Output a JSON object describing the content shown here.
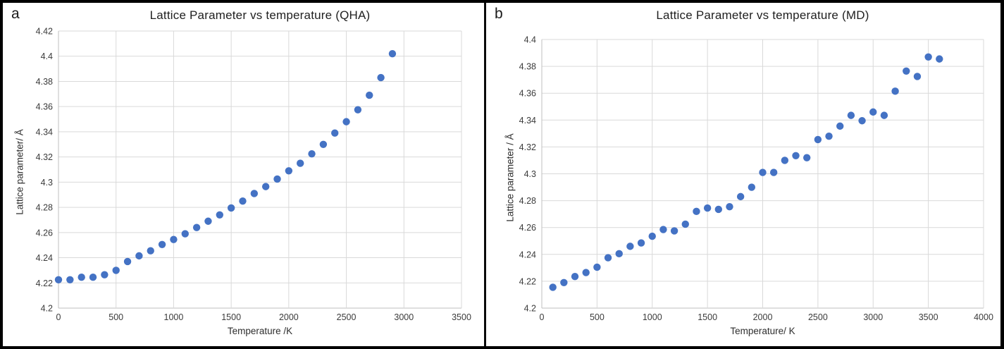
{
  "figure": {
    "panels": [
      {
        "letter": "a"
      },
      {
        "letter": "b"
      }
    ]
  },
  "chart_data": [
    {
      "type": "scatter",
      "title": "Lattice Parameter vs temperature (QHA)",
      "xlabel": "Temperature /K",
      "ylabel": "Lattice parameter/ Å",
      "xlim": [
        0,
        3500
      ],
      "ylim": [
        4.2,
        4.42
      ],
      "xticks": [
        0,
        500,
        1000,
        1500,
        2000,
        2500,
        3000,
        3500
      ],
      "yticks": [
        4.2,
        4.22,
        4.24,
        4.26,
        4.28,
        4.3,
        4.32,
        4.34,
        4.36,
        4.38,
        4.4,
        4.42
      ],
      "grid": true,
      "legend": "none",
      "point_color": "#4472C4",
      "grid_color": "#d9d9d9",
      "axis_color": "#bfbfbf",
      "tick_color": "#3b3b3b",
      "x": [
        0,
        100,
        200,
        300,
        400,
        500,
        600,
        700,
        800,
        900,
        1000,
        1100,
        1200,
        1300,
        1400,
        1500,
        1600,
        1700,
        1800,
        1900,
        2000,
        2100,
        2200,
        2300,
        2400,
        2500,
        2600,
        2700,
        2800,
        2900
      ],
      "y": [
        4.2225,
        4.2225,
        4.2245,
        4.2245,
        4.2265,
        4.23,
        4.237,
        4.2415,
        4.2455,
        4.2505,
        4.2545,
        4.259,
        4.264,
        4.269,
        4.274,
        4.2795,
        4.285,
        4.291,
        4.2965,
        4.3025,
        4.309,
        4.315,
        4.3225,
        4.33,
        4.339,
        4.348,
        4.3575,
        4.369,
        4.383,
        4.402
      ]
    },
    {
      "type": "scatter",
      "title": "Lattice Parameter vs temperature (MD)",
      "xlabel": "Temperature/ K",
      "ylabel": "Lattice parameter / Å",
      "xlim": [
        0,
        4000
      ],
      "ylim": [
        4.2,
        4.4
      ],
      "xticks": [
        0,
        500,
        1000,
        1500,
        2000,
        2500,
        3000,
        3500,
        4000
      ],
      "yticks": [
        4.2,
        4.22,
        4.24,
        4.26,
        4.28,
        4.3,
        4.32,
        4.34,
        4.36,
        4.38,
        4.4
      ],
      "grid": true,
      "legend": "none",
      "point_color": "#4472C4",
      "grid_color": "#d9d9d9",
      "axis_color": "#bfbfbf",
      "tick_color": "#3b3b3b",
      "x": [
        100,
        200,
        300,
        400,
        500,
        600,
        700,
        800,
        900,
        1000,
        1100,
        1200,
        1300,
        1400,
        1500,
        1600,
        1700,
        1800,
        1900,
        2000,
        2100,
        2200,
        2300,
        2400,
        2500,
        2600,
        2700,
        2800,
        2900,
        3000,
        3100,
        3200,
        3300,
        3400,
        3500,
        3600
      ],
      "y": [
        4.2155,
        4.219,
        4.2235,
        4.2265,
        4.2305,
        4.2375,
        4.2405,
        4.246,
        4.2485,
        4.2535,
        4.2585,
        4.2575,
        4.2625,
        4.272,
        4.2745,
        4.2735,
        4.2755,
        4.283,
        4.29,
        4.301,
        4.301,
        4.31,
        4.3135,
        4.312,
        4.3255,
        4.328,
        4.3355,
        4.3435,
        4.3395,
        4.346,
        4.3435,
        4.3615,
        4.3765,
        4.3725,
        4.387,
        4.3855
      ]
    }
  ]
}
